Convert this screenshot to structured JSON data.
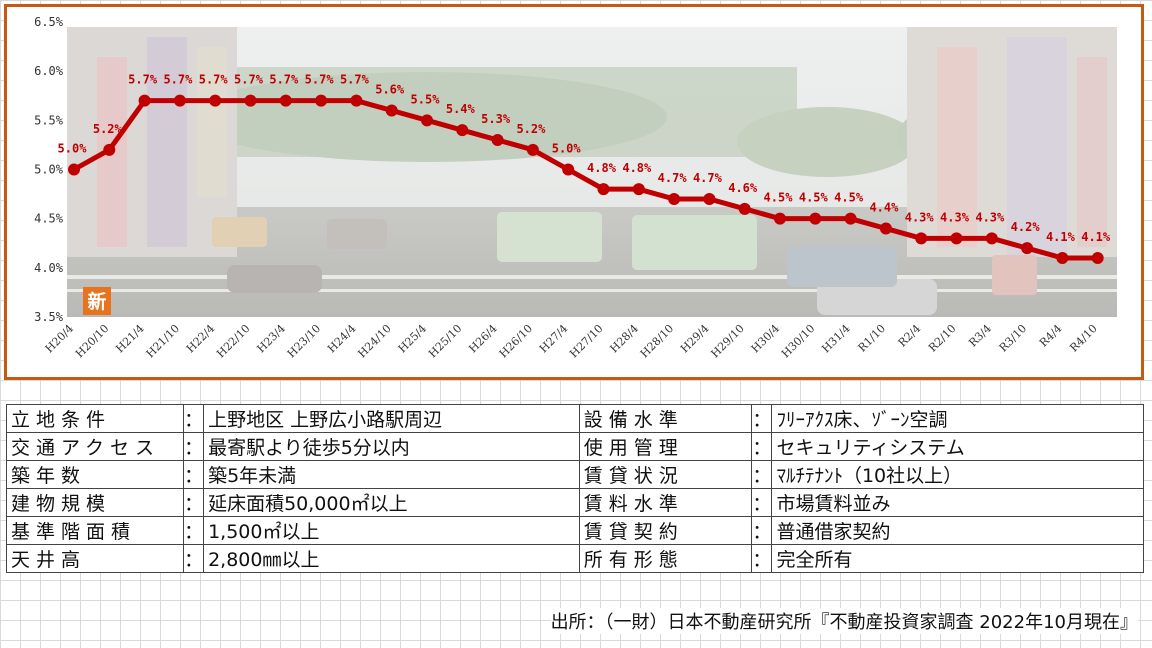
{
  "chart_data": {
    "type": "line",
    "x": [
      "H20/4",
      "H20/10",
      "H21/4",
      "H21/10",
      "H22/4",
      "H22/10",
      "H23/4",
      "H23/10",
      "H24/4",
      "H24/10",
      "H25/4",
      "H25/10",
      "H26/4",
      "H26/10",
      "H27/4",
      "H27/10",
      "H28/4",
      "H28/10",
      "H29/4",
      "H29/10",
      "H30/4",
      "H30/10",
      "H31/4",
      "R1/10",
      "R2/4",
      "R2/10",
      "R3/4",
      "R3/10",
      "R4/4",
      "R4/10"
    ],
    "values": [
      5.0,
      5.2,
      5.7,
      5.7,
      5.7,
      5.7,
      5.7,
      5.7,
      5.7,
      5.6,
      5.5,
      5.4,
      5.3,
      5.2,
      5.0,
      4.8,
      4.8,
      4.7,
      4.7,
      4.6,
      4.5,
      4.5,
      4.5,
      4.4,
      4.3,
      4.3,
      4.3,
      4.2,
      4.1,
      4.1
    ],
    "data_labels": [
      "5.0%",
      "5.2%",
      "5.7%",
      "5.7%",
      "5.7%",
      "5.7%",
      "5.7%",
      "5.7%",
      "5.7%",
      "5.6%",
      "5.5%",
      "5.4%",
      "5.3%",
      "5.2%",
      "5.0%",
      "4.8%",
      "4.8%",
      "4.7%",
      "4.7%",
      "4.6%",
      "4.5%",
      "4.5%",
      "4.5%",
      "4.4%",
      "4.3%",
      "4.3%",
      "4.3%",
      "4.2%",
      "4.1%",
      "4.1%"
    ],
    "yticks": [
      "3.5%",
      "4.0%",
      "4.5%",
      "5.0%",
      "5.5%",
      "6.0%",
      "6.5%"
    ],
    "ylim": [
      3.5,
      6.5
    ],
    "grid": false,
    "colors": {
      "line": "#c00000",
      "frame": "#c55a11"
    },
    "badge": "新"
  },
  "table": {
    "rows": [
      {
        "l_label": "立地条件",
        "l_value": "上野地区 上野広小路駅周辺",
        "r_label": "設備水準",
        "r_value": "ﾌﾘｰｱｸｽ床、ｿﾞｰﾝ空調"
      },
      {
        "l_label": "交通アクセス",
        "l_value": "最寄駅より徒歩5分以内",
        "r_label": "使用管理",
        "r_value": "セキュリティシステム"
      },
      {
        "l_label": "築年数",
        "l_value": "築5年未満",
        "r_label": "賃貸状況",
        "r_value": "ﾏﾙﾁﾃﾅﾝﾄ（10社以上）"
      },
      {
        "l_label": "建物規模",
        "l_value": "延床面積50,000㎡以上",
        "r_label": "賃料水準",
        "r_value": "市場賃料並み"
      },
      {
        "l_label": "基準階面積",
        "l_value": "1,500㎡以上",
        "r_label": "賃貸契約",
        "r_value": "普通借家契約"
      },
      {
        "l_label": "天井高",
        "l_value": "2,800㎜以上",
        "r_label": "所有形態",
        "r_value": "完全所有"
      }
    ],
    "separator": "："
  },
  "source": "出所：（一財）日本不動産研究所『不動産投資家調査 2022年10月現在』"
}
